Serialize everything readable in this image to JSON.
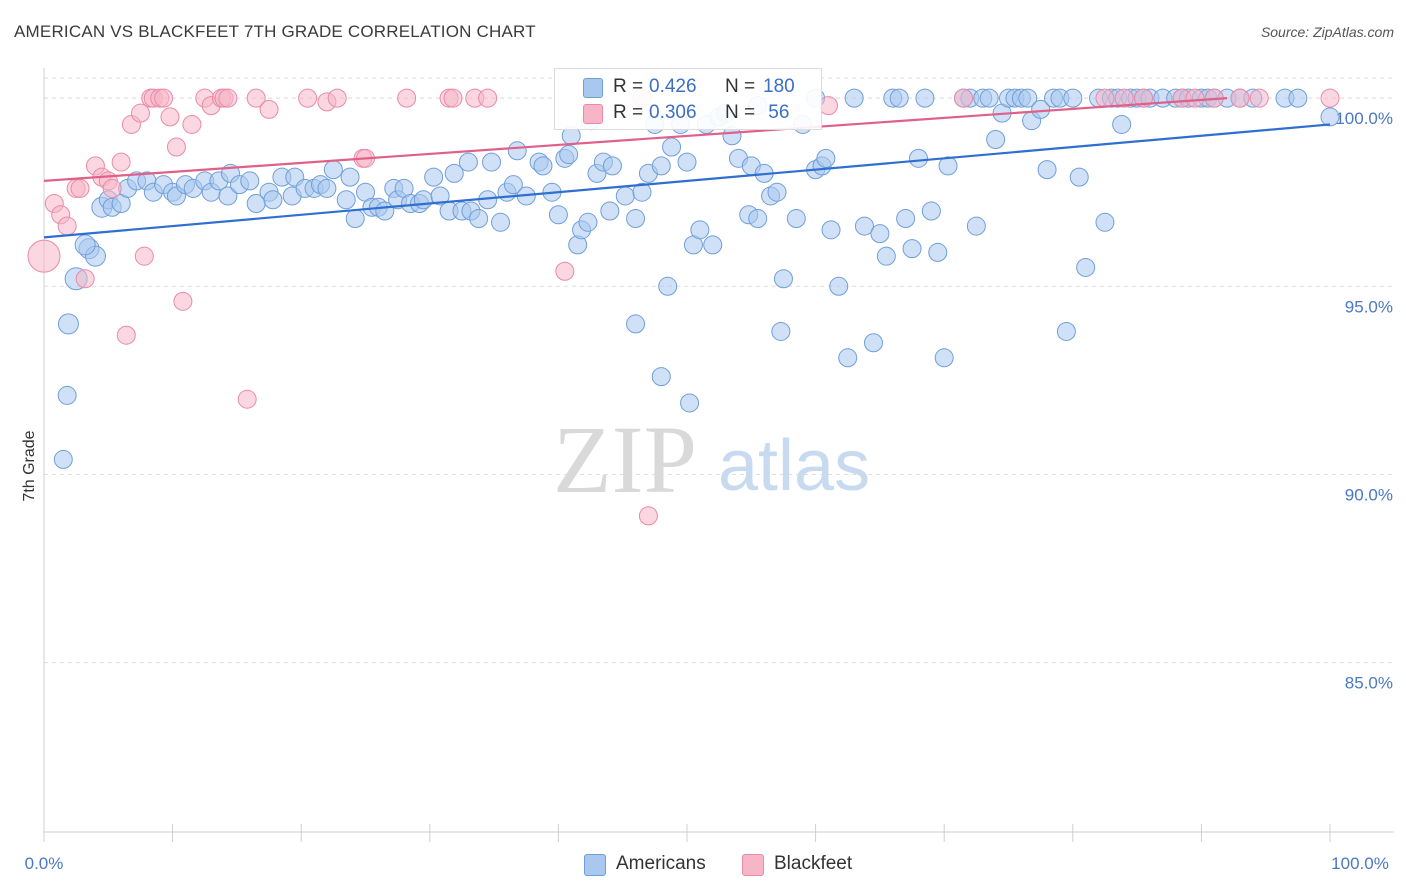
{
  "title": "AMERICAN VS BLACKFEET 7TH GRADE CORRELATION CHART",
  "source": "Source: ZipAtlas.com",
  "watermark": {
    "zip": "ZIP",
    "atlas": "atlas"
  },
  "colors": {
    "americans_fill": "#a9c8f0",
    "americans_stroke": "#6f9fd8",
    "americans_line": "#2f6fd0",
    "blackfeet_fill": "#f6b6c8",
    "blackfeet_stroke": "#ea8aa8",
    "blackfeet_line": "#e0608a",
    "grid": "#dedede",
    "tick_text": "#4a78c2"
  },
  "legend_top": {
    "rows": [
      {
        "r_label": "R =",
        "r_value": "0.426",
        "n_label": "N =",
        "n_value": "180"
      },
      {
        "r_label": "R =",
        "r_value": "0.306",
        "n_label": "N =",
        "n_value": " 56"
      }
    ]
  },
  "legend_bottom": {
    "items": [
      "Americans",
      "Blackfeet"
    ]
  },
  "chart_data": {
    "type": "scatter",
    "title": "AMERICAN VS BLACKFEET 7TH GRADE CORRELATION CHART",
    "xlabel": "",
    "ylabel": "7th Grade",
    "xlim": [
      0,
      100
    ],
    "ylim": [
      80.5,
      100.8
    ],
    "x_tick_labels": [
      "0.0%",
      "100.0%"
    ],
    "y_ticks": [
      85,
      90,
      95,
      100
    ],
    "y_tick_labels": [
      "85.0%",
      "90.0%",
      "95.0%",
      "100.0%"
    ],
    "grid": true,
    "legend_position": "top-center and bottom",
    "series": [
      {
        "name": "Americans",
        "r": 0.426,
        "n": 180,
        "trend": {
          "x": [
            0,
            100
          ],
          "y": [
            96.3,
            99.3
          ]
        },
        "points": [
          [
            1.5,
            90.4,
            9
          ],
          [
            1.8,
            92.1,
            9
          ],
          [
            1.9,
            94.0,
            10
          ],
          [
            2.5,
            95.2,
            11
          ],
          [
            3.5,
            96.0,
            10
          ],
          [
            4.0,
            95.8,
            10
          ],
          [
            3.2,
            96.1,
            10
          ],
          [
            4.5,
            97.1,
            10
          ],
          [
            5.0,
            97.3,
            9
          ],
          [
            5.3,
            97.1,
            9
          ],
          [
            6.0,
            97.2,
            9
          ],
          [
            6.5,
            97.6,
            9
          ],
          [
            7.2,
            97.8,
            9
          ],
          [
            8.0,
            97.8,
            9
          ],
          [
            8.5,
            97.5,
            9
          ],
          [
            9.3,
            97.7,
            9
          ],
          [
            10.0,
            97.5,
            9
          ],
          [
            10.3,
            97.4,
            9
          ],
          [
            11.0,
            97.7,
            9
          ],
          [
            11.6,
            97.6,
            9
          ],
          [
            12.5,
            97.8,
            9
          ],
          [
            13.0,
            97.5,
            9
          ],
          [
            13.6,
            97.8,
            9
          ],
          [
            14.3,
            97.4,
            9
          ],
          [
            14.5,
            98.0,
            9
          ],
          [
            15.2,
            97.7,
            9
          ],
          [
            16.0,
            97.8,
            9
          ],
          [
            16.5,
            97.2,
            9
          ],
          [
            17.5,
            97.5,
            9
          ],
          [
            17.8,
            97.3,
            9
          ],
          [
            18.5,
            97.9,
            9
          ],
          [
            19.3,
            97.4,
            9
          ],
          [
            19.5,
            97.9,
            9
          ],
          [
            20.3,
            97.6,
            9
          ],
          [
            21.0,
            97.6,
            9
          ],
          [
            21.5,
            97.7,
            9
          ],
          [
            22.0,
            97.6,
            9
          ],
          [
            22.5,
            98.1,
            9
          ],
          [
            23.5,
            97.3,
            9
          ],
          [
            23.8,
            97.9,
            9
          ],
          [
            24.2,
            96.8,
            9
          ],
          [
            25.0,
            97.5,
            9
          ],
          [
            25.5,
            97.1,
            9
          ],
          [
            26.0,
            97.1,
            9
          ],
          [
            26.5,
            97.0,
            9
          ],
          [
            27.2,
            97.6,
            9
          ],
          [
            27.5,
            97.3,
            9
          ],
          [
            28.0,
            97.6,
            9
          ],
          [
            28.5,
            97.2,
            9
          ],
          [
            29.2,
            97.2,
            9
          ],
          [
            29.5,
            97.3,
            9
          ],
          [
            30.3,
            97.9,
            9
          ],
          [
            30.8,
            97.4,
            9
          ],
          [
            31.5,
            97.0,
            9
          ],
          [
            31.9,
            98.0,
            9
          ],
          [
            32.5,
            97.0,
            9
          ],
          [
            33.0,
            98.3,
            9
          ],
          [
            33.2,
            97.0,
            9
          ],
          [
            33.8,
            96.8,
            9
          ],
          [
            34.5,
            97.3,
            9
          ],
          [
            34.8,
            98.3,
            9
          ],
          [
            35.5,
            96.7,
            9
          ],
          [
            36.0,
            97.5,
            9
          ],
          [
            36.5,
            97.7,
            9
          ],
          [
            36.8,
            98.6,
            9
          ],
          [
            37.5,
            97.4,
            9
          ],
          [
            38.5,
            98.3,
            9
          ],
          [
            38.8,
            98.2,
            9
          ],
          [
            39.5,
            97.5,
            9
          ],
          [
            40.0,
            96.9,
            9
          ],
          [
            40.5,
            98.4,
            9
          ],
          [
            40.8,
            98.5,
            9
          ],
          [
            41.0,
            99.0,
            9
          ],
          [
            41.5,
            96.1,
            9
          ],
          [
            41.8,
            96.5,
            9
          ],
          [
            42.3,
            96.7,
            9
          ],
          [
            42.5,
            99.4,
            9
          ],
          [
            43.0,
            98.0,
            9
          ],
          [
            43.5,
            98.3,
            9
          ],
          [
            44.0,
            97.0,
            9
          ],
          [
            44.2,
            98.2,
            9
          ],
          [
            45.2,
            97.4,
            9
          ],
          [
            46.0,
            96.8,
            9
          ],
          [
            46.5,
            97.5,
            9
          ],
          [
            47.0,
            98.0,
            9
          ],
          [
            47.5,
            99.3,
            9
          ],
          [
            48.0,
            98.2,
            9
          ],
          [
            48.5,
            95.0,
            9
          ],
          [
            48.8,
            98.7,
            9
          ],
          [
            49.5,
            99.3,
            9
          ],
          [
            50.0,
            98.3,
            9
          ],
          [
            50.5,
            96.1,
            9
          ],
          [
            51.0,
            96.5,
            9
          ],
          [
            51.5,
            99.3,
            9
          ],
          [
            52.0,
            96.1,
            9
          ],
          [
            52.5,
            99.5,
            9
          ],
          [
            53.0,
            99.6,
            9
          ],
          [
            54.0,
            98.4,
            9
          ],
          [
            54.8,
            96.9,
            9
          ],
          [
            55.0,
            98.2,
            9
          ],
          [
            55.5,
            96.8,
            9
          ],
          [
            56.0,
            98.0,
            9
          ],
          [
            56.5,
            97.4,
            9
          ],
          [
            57.0,
            97.5,
            9
          ],
          [
            57.3,
            93.8,
            9
          ],
          [
            57.5,
            95.2,
            9
          ],
          [
            58.5,
            96.8,
            9
          ],
          [
            59.0,
            99.3,
            9
          ],
          [
            60.0,
            98.1,
            9
          ],
          [
            60.5,
            98.2,
            9
          ],
          [
            60.8,
            98.4,
            9
          ],
          [
            61.2,
            96.5,
            9
          ],
          [
            61.8,
            95.0,
            9
          ],
          [
            62.5,
            93.1,
            9
          ],
          [
            63.0,
            100.0,
            9
          ],
          [
            63.8,
            96.6,
            9
          ],
          [
            64.5,
            93.5,
            9
          ],
          [
            65.0,
            96.4,
            9
          ],
          [
            65.5,
            95.8,
            9
          ],
          [
            66.0,
            100.0,
            9
          ],
          [
            66.5,
            100.0,
            9
          ],
          [
            67.0,
            96.8,
            9
          ],
          [
            67.5,
            96.0,
            9
          ],
          [
            68.0,
            98.4,
            9
          ],
          [
            68.5,
            100.0,
            9
          ],
          [
            69.0,
            97.0,
            9
          ],
          [
            69.5,
            95.9,
            9
          ],
          [
            70.0,
            93.1,
            9
          ],
          [
            70.3,
            98.2,
            9
          ],
          [
            71.5,
            100.0,
            9
          ],
          [
            72.0,
            100.0,
            9
          ],
          [
            72.5,
            96.6,
            9
          ],
          [
            73.0,
            100.0,
            9
          ],
          [
            73.5,
            100.0,
            9
          ],
          [
            74.0,
            98.9,
            9
          ],
          [
            74.5,
            99.6,
            9
          ],
          [
            75.0,
            100.0,
            9
          ],
          [
            75.5,
            100.0,
            9
          ],
          [
            76.0,
            100.0,
            9
          ],
          [
            76.5,
            100.0,
            9
          ],
          [
            76.8,
            99.4,
            9
          ],
          [
            77.5,
            99.7,
            9
          ],
          [
            78.0,
            98.1,
            9
          ],
          [
            78.5,
            100.0,
            9
          ],
          [
            79.0,
            100.0,
            9
          ],
          [
            79.5,
            93.8,
            9
          ],
          [
            80.0,
            100.0,
            9
          ],
          [
            80.5,
            97.9,
            9
          ],
          [
            81.0,
            95.5,
            9
          ],
          [
            82.0,
            100.0,
            9
          ],
          [
            82.5,
            96.7,
            9
          ],
          [
            83.0,
            100.0,
            9
          ],
          [
            83.5,
            100.0,
            9
          ],
          [
            83.8,
            99.3,
            9
          ],
          [
            84.5,
            100.0,
            9
          ],
          [
            85.0,
            100.0,
            9
          ],
          [
            85.5,
            100.0,
            9
          ],
          [
            86.0,
            100.0,
            9
          ],
          [
            87.0,
            100.0,
            9
          ],
          [
            88.0,
            100.0,
            9
          ],
          [
            88.5,
            100.0,
            9
          ],
          [
            89.0,
            100.0,
            9
          ],
          [
            90.0,
            100.0,
            9
          ],
          [
            90.5,
            100.0,
            9
          ],
          [
            91.0,
            100.0,
            9
          ],
          [
            92.0,
            100.0,
            9
          ],
          [
            93.0,
            100.0,
            9
          ],
          [
            94.0,
            100.0,
            9
          ],
          [
            96.5,
            100.0,
            9
          ],
          [
            97.5,
            100.0,
            9
          ],
          [
            100.0,
            99.5,
            9
          ],
          [
            60.0,
            100.0,
            9
          ],
          [
            55.5,
            99.8,
            9
          ],
          [
            50.2,
            91.9,
            9
          ],
          [
            48.0,
            92.6,
            9
          ],
          [
            46.0,
            94.0,
            9
          ],
          [
            53.5,
            99.0,
            9
          ]
        ]
      },
      {
        "name": "Blackfeet",
        "r": 0.306,
        "n": 56,
        "trend": {
          "x": [
            0,
            92
          ],
          "y": [
            97.8,
            100.0
          ]
        },
        "points": [
          [
            0.0,
            95.8,
            16
          ],
          [
            0.8,
            97.2,
            9
          ],
          [
            1.3,
            96.9,
            9
          ],
          [
            1.8,
            96.6,
            9
          ],
          [
            2.5,
            97.6,
            9
          ],
          [
            2.8,
            97.6,
            9
          ],
          [
            3.2,
            95.2,
            9
          ],
          [
            4.0,
            98.2,
            9
          ],
          [
            4.5,
            97.9,
            9
          ],
          [
            5.0,
            97.8,
            9
          ],
          [
            5.3,
            97.6,
            9
          ],
          [
            6.0,
            98.3,
            9
          ],
          [
            6.4,
            93.7,
            9
          ],
          [
            6.8,
            99.3,
            9
          ],
          [
            7.5,
            99.6,
            9
          ],
          [
            7.8,
            95.8,
            9
          ],
          [
            8.3,
            100.0,
            9
          ],
          [
            8.5,
            100.0,
            9
          ],
          [
            9.0,
            100.0,
            9
          ],
          [
            9.3,
            100.0,
            9
          ],
          [
            9.8,
            99.5,
            9
          ],
          [
            10.3,
            98.7,
            9
          ],
          [
            10.8,
            94.6,
            9
          ],
          [
            11.5,
            99.3,
            9
          ],
          [
            12.5,
            100.0,
            9
          ],
          [
            13.0,
            99.8,
            9
          ],
          [
            13.8,
            100.0,
            9
          ],
          [
            14.0,
            100.0,
            9
          ],
          [
            14.3,
            100.0,
            9
          ],
          [
            15.8,
            92.0,
            9
          ],
          [
            16.5,
            100.0,
            9
          ],
          [
            17.5,
            99.7,
            9
          ],
          [
            20.5,
            100.0,
            9
          ],
          [
            22.0,
            99.9,
            9
          ],
          [
            22.8,
            100.0,
            9
          ],
          [
            24.8,
            98.4,
            9
          ],
          [
            25.0,
            98.4,
            9
          ],
          [
            28.2,
            100.0,
            9
          ],
          [
            31.5,
            100.0,
            9
          ],
          [
            31.8,
            100.0,
            9
          ],
          [
            33.5,
            100.0,
            9
          ],
          [
            34.5,
            100.0,
            9
          ],
          [
            40.5,
            95.4,
            9
          ],
          [
            46.5,
            100.0,
            9
          ],
          [
            47.0,
            88.9,
            9
          ],
          [
            61.0,
            99.8,
            9
          ],
          [
            71.5,
            100.0,
            9
          ],
          [
            82.5,
            100.0,
            9
          ],
          [
            84.0,
            100.0,
            9
          ],
          [
            85.5,
            100.0,
            9
          ],
          [
            88.5,
            100.0,
            9
          ],
          [
            91.0,
            100.0,
            9
          ],
          [
            93.0,
            100.0,
            9
          ],
          [
            94.5,
            100.0,
            9
          ],
          [
            100.0,
            100.0,
            9
          ],
          [
            89.5,
            100.0,
            9
          ]
        ]
      }
    ]
  }
}
